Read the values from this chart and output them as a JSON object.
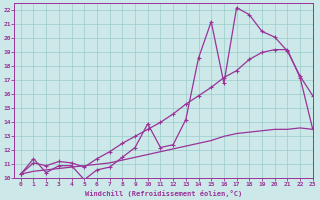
{
  "xlabel": "Windchill (Refroidissement éolien,°C)",
  "background_color": "#cce8e8",
  "grid_color": "#99cccc",
  "line_color": "#993399",
  "xlim": [
    -0.5,
    23
  ],
  "ylim": [
    10,
    22.5
  ],
  "xticks": [
    0,
    1,
    2,
    3,
    4,
    5,
    6,
    7,
    8,
    9,
    10,
    11,
    12,
    13,
    14,
    15,
    16,
    17,
    18,
    19,
    20,
    21,
    22,
    23
  ],
  "yticks": [
    10,
    11,
    12,
    13,
    14,
    15,
    16,
    17,
    18,
    19,
    20,
    21,
    22
  ],
  "line1_x": [
    0,
    1,
    2,
    3,
    4,
    5,
    6,
    7,
    8,
    9,
    10,
    11,
    12,
    13,
    14,
    15,
    16,
    17,
    18,
    19,
    20,
    21,
    22,
    23
  ],
  "line1_y": [
    10.3,
    11.4,
    10.4,
    10.9,
    10.9,
    9.9,
    10.6,
    10.8,
    11.5,
    12.2,
    13.9,
    12.2,
    12.4,
    14.2,
    18.6,
    21.2,
    16.8,
    22.2,
    21.7,
    20.5,
    20.1,
    19.1,
    17.3,
    15.9
  ],
  "line2_x": [
    0,
    1,
    2,
    3,
    4,
    5,
    6,
    7,
    8,
    9,
    10,
    11,
    12,
    13,
    14,
    15,
    16,
    17,
    18,
    19,
    20,
    21,
    22,
    23
  ],
  "line2_y": [
    10.3,
    11.1,
    10.9,
    11.2,
    11.1,
    10.8,
    11.4,
    11.9,
    12.5,
    13.0,
    13.5,
    14.0,
    14.6,
    15.3,
    15.9,
    16.5,
    17.2,
    17.7,
    18.5,
    19.0,
    19.2,
    19.2,
    17.2,
    13.5
  ],
  "line3_x": [
    0,
    1,
    2,
    3,
    4,
    5,
    6,
    7,
    8,
    9,
    10,
    11,
    12,
    13,
    14,
    15,
    16,
    17,
    18,
    19,
    20,
    21,
    22,
    23
  ],
  "line3_y": [
    10.3,
    10.5,
    10.6,
    10.7,
    10.8,
    10.9,
    11.0,
    11.1,
    11.3,
    11.5,
    11.7,
    11.9,
    12.1,
    12.3,
    12.5,
    12.7,
    13.0,
    13.2,
    13.3,
    13.4,
    13.5,
    13.5,
    13.6,
    13.5
  ]
}
